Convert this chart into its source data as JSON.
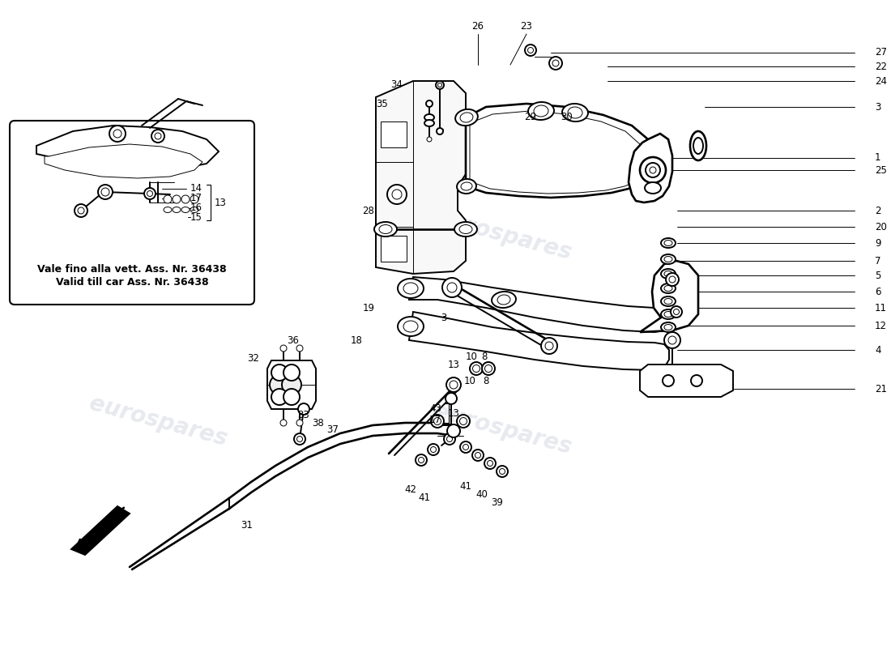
{
  "background_color": "#ffffff",
  "line_color": "#000000",
  "text_color": "#000000",
  "watermark": "eurospares",
  "watermark_color": "#b0b8c8",
  "watermark_alpha": 0.3,
  "inset_text1": "Vale fino alla vett. Ass. Nr. 36438",
  "inset_text2": "Valid till car Ass. Nr. 36438",
  "lw_main": 1.4,
  "lw_thin": 0.7,
  "lw_leader": 0.7,
  "label_fontsize": 8.5
}
